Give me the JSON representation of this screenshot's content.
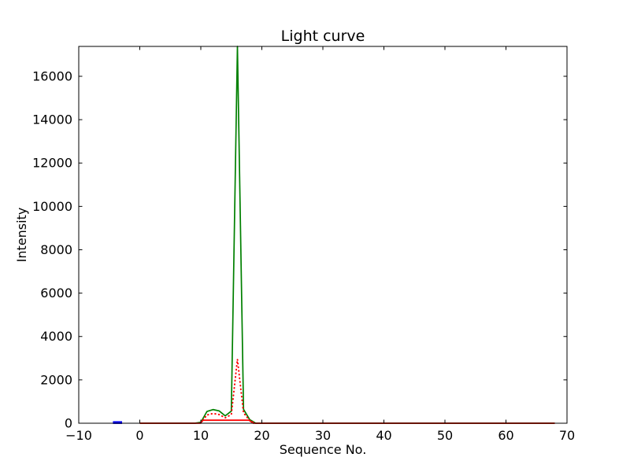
{
  "figure": {
    "background_color": "#ffffff",
    "axes_edge_color": "#000000"
  },
  "chart_data": {
    "type": "line",
    "title": "Light curve",
    "xlabel": "Sequence No.",
    "ylabel": "Intensity",
    "xlim": [
      -10,
      70
    ],
    "ylim": [
      0,
      17378
    ],
    "xticks": [
      -10,
      0,
      10,
      20,
      30,
      40,
      50,
      60,
      70
    ],
    "xtick_labels": [
      "−10",
      "0",
      "10",
      "20",
      "30",
      "40",
      "50",
      "60",
      "70"
    ],
    "yticks": [
      0,
      2000,
      4000,
      6000,
      8000,
      10000,
      12000,
      14000,
      16000
    ],
    "ytick_labels": [
      "0",
      "2000",
      "4000",
      "6000",
      "8000",
      "10000",
      "12000",
      "14000",
      "16000"
    ],
    "grid": false,
    "legend": null,
    "tick_direction": "in",
    "ticks_on_all_sides": true,
    "series": [
      {
        "name": "light-curve-green-solid",
        "color": "#008000",
        "style": "solid",
        "width": 1.7,
        "points": [
          [
            0,
            0
          ],
          [
            9,
            0
          ],
          [
            10,
            40
          ],
          [
            11,
            540
          ],
          [
            12,
            630
          ],
          [
            13,
            570
          ],
          [
            14,
            340
          ],
          [
            15,
            560
          ],
          [
            16,
            17378
          ],
          [
            17,
            640
          ],
          [
            18,
            170
          ],
          [
            19,
            0
          ],
          [
            68,
            0
          ]
        ]
      },
      {
        "name": "light-curve-red-dotted",
        "color": "#ff0000",
        "style": "dotted",
        "width": 2,
        "points": [
          [
            10,
            10
          ],
          [
            11,
            380
          ],
          [
            12,
            450
          ],
          [
            13,
            400
          ],
          [
            14,
            250
          ],
          [
            15,
            400
          ],
          [
            16,
            2950
          ],
          [
            17,
            480
          ],
          [
            18,
            130
          ],
          [
            18.8,
            0
          ]
        ]
      },
      {
        "name": "background-level-red-solid",
        "color": "#ff0000",
        "style": "solid",
        "width": 1.7,
        "points": [
          [
            0,
            0
          ],
          [
            9.9,
            0
          ],
          [
            10.4,
            140
          ],
          [
            17.9,
            140
          ],
          [
            18.6,
            0
          ],
          [
            68,
            0
          ]
        ]
      },
      {
        "name": "blue-segment",
        "color": "#0000ff",
        "style": "solid",
        "width": 3.5,
        "points": [
          [
            -4.4,
            30
          ],
          [
            -2.9,
            30
          ]
        ]
      }
    ]
  }
}
